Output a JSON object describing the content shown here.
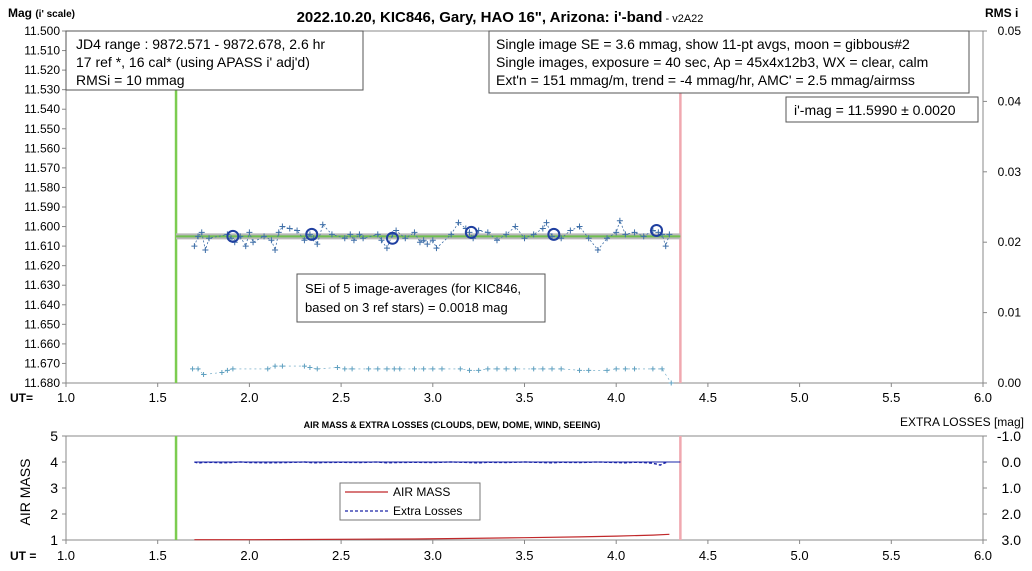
{
  "title_main": "2022.10.20, KIC846, Gary, HAO 16\", Arizona: i'-band",
  "title_version": " - v2A22",
  "top_chart": {
    "ylabel_main": "Mag",
    "ylabel_sub": "(i' scale)",
    "y2label": "RMS i",
    "xlabel": "UT=",
    "y_ticks": [
      "11.500",
      "11.510",
      "11.520",
      "11.530",
      "11.540",
      "11.550",
      "11.560",
      "11.570",
      "11.580",
      "11.590",
      "11.600",
      "11.610",
      "11.620",
      "11.630",
      "11.640",
      "11.650",
      "11.660",
      "11.670",
      "11.680"
    ],
    "y2_ticks": [
      "0.05",
      "0.04",
      "0.03",
      "0.02",
      "0.01",
      "0.00"
    ],
    "x_ticks": [
      "1.0",
      "1.5",
      "2.0",
      "2.5",
      "3.0",
      "3.5",
      "4.0",
      "4.5",
      "5.0",
      "5.5",
      "6.0"
    ],
    "info_left": [
      "JD4 range : 9872.571 - 9872.678, 2.6  hr",
      "17 ref *, 16 cal* (using APASS i' adj'd)",
      "RMSi = 10 mmag"
    ],
    "info_right": [
      "Single image SE = 3.6 mmag, show 11-pt avgs, moon = gibbous#2",
      "Single images, exposure = 40 sec, Ap = 45x4x12b3, WX = clear, calm",
      "Ext'n = 151 mmag/m, trend = -4 mmag/hr, AMC' = 2.5 mmag/airmss"
    ],
    "mag_box": "i'-mag = 11.5990 ± 0.0020",
    "sei_box": [
      "SEi of 5 image-averages (for KIC846,",
      "based on 3 ref stars) = 0.0018 mag"
    ]
  },
  "bottom_chart": {
    "title": "AIR MASS & EXTRA LOSSES (CLOUDS, DEW, DOME, WIND, SEEING)",
    "ylabel": "AIR MASS",
    "y2label": "EXTRA LOSSES [mag]",
    "xlabel": "UT =",
    "y_ticks": [
      "5",
      "4",
      "3",
      "2",
      "1"
    ],
    "y2_ticks": [
      "-1.0",
      "0.0",
      "1.0",
      "2.0",
      "3.0"
    ],
    "x_ticks": [
      "1.0",
      "1.5",
      "2.0",
      "2.5",
      "3.0",
      "3.5",
      "4.0",
      "4.5",
      "5.0",
      "5.5",
      "6.0"
    ],
    "legend": [
      "AIR MASS",
      "Extra Losses"
    ]
  },
  "chart_data": [
    {
      "type": "scatter",
      "xlim": [
        1.0,
        6.0
      ],
      "ylim": [
        11.68,
        11.5
      ],
      "y2lim": [
        0.0,
        0.05
      ],
      "colors": {
        "points": "#3f6fa8",
        "avg": "#1f3fa0",
        "fit": "#6fbf4f",
        "band": "#b8b8b8",
        "start": "#7ccc50",
        "end": "#f0a8b0",
        "rms": "#5fa0c0"
      },
      "start_ut": 1.6,
      "end_ut": 4.35,
      "fit_mag": 11.605,
      "series": [
        {
          "x": [
            1.7,
            1.72,
            1.74,
            1.76,
            1.78,
            1.88,
            1.9,
            1.92,
            1.95,
            1.98,
            2.0,
            2.02,
            2.08,
            2.12,
            2.14,
            2.16,
            2.18,
            2.22,
            2.26,
            2.3,
            2.33,
            2.35,
            2.37,
            2.4,
            2.45,
            2.52,
            2.55,
            2.57,
            2.6,
            2.62,
            2.7,
            2.72,
            2.75,
            2.78,
            2.8,
            2.85,
            2.9,
            2.93,
            2.95,
            2.97,
            3.0,
            3.02,
            3.1,
            3.14,
            3.18,
            3.2,
            3.22,
            3.25,
            3.3,
            3.35,
            3.4,
            3.45,
            3.5,
            3.55,
            3.6,
            3.62,
            3.65,
            3.7,
            3.75,
            3.8,
            3.85,
            3.9,
            3.95,
            4.0,
            4.02,
            4.05,
            4.1,
            4.15,
            4.2,
            4.23,
            4.25,
            4.27,
            4.29
          ],
          "y": [
            11.61,
            11.605,
            11.603,
            11.612,
            11.606,
            11.604,
            11.606,
            11.608,
            11.605,
            11.61,
            11.603,
            11.608,
            11.605,
            11.607,
            11.612,
            11.603,
            11.6,
            11.601,
            11.602,
            11.607,
            11.604,
            11.606,
            11.609,
            11.599,
            11.604,
            11.606,
            11.604,
            11.607,
            11.604,
            11.606,
            11.604,
            11.607,
            11.611,
            11.604,
            11.602,
            11.606,
            11.603,
            11.608,
            11.607,
            11.609,
            11.607,
            11.611,
            11.604,
            11.598,
            11.601,
            11.603,
            11.606,
            11.602,
            11.603,
            11.607,
            11.604,
            11.6,
            11.606,
            11.604,
            11.601,
            11.598,
            11.605,
            11.606,
            11.602,
            11.6,
            11.606,
            11.612,
            11.606,
            11.603,
            11.597,
            11.604,
            11.603,
            11.605,
            11.602,
            11.603,
            11.604,
            11.61,
            11.604
          ],
          "avg_x": [
            1.91,
            2.34,
            2.78,
            3.21,
            3.66,
            4.22
          ],
          "avg_y": [
            11.605,
            11.604,
            11.606,
            11.603,
            11.604,
            11.602
          ],
          "rms_x": [
            1.69,
            1.72,
            1.75,
            1.85,
            1.88,
            1.91,
            2.1,
            2.14,
            2.18,
            2.3,
            2.33,
            2.37,
            2.48,
            2.52,
            2.56,
            2.65,
            2.7,
            2.75,
            2.79,
            2.82,
            2.9,
            2.95,
            3.0,
            3.05,
            3.15,
            3.2,
            3.25,
            3.3,
            3.35,
            3.4,
            3.45,
            3.55,
            3.6,
            3.65,
            3.7,
            3.8,
            3.85,
            3.95,
            4.0,
            4.05,
            4.1,
            4.2,
            4.25,
            4.3
          ],
          "rms_y": [
            0.002,
            0.002,
            0.0012,
            0.0015,
            0.0018,
            0.002,
            0.002,
            0.0024,
            0.0024,
            0.0024,
            0.0022,
            0.002,
            0.0022,
            0.002,
            0.002,
            0.002,
            0.002,
            0.002,
            0.002,
            0.002,
            0.002,
            0.002,
            0.002,
            0.002,
            0.002,
            0.0018,
            0.0018,
            0.002,
            0.002,
            0.002,
            0.002,
            0.002,
            0.002,
            0.002,
            0.002,
            0.0018,
            0.0018,
            0.0018,
            0.002,
            0.002,
            0.002,
            0.002,
            0.002,
            0.0
          ]
        }
      ]
    },
    {
      "type": "line",
      "xlim": [
        1.0,
        6.0
      ],
      "ylim": [
        1,
        5
      ],
      "y2lim": [
        -1.0,
        3.0
      ],
      "colors": {
        "airmass": "#c0282a",
        "losses": "#1a24a8"
      },
      "series": [
        {
          "name": "AIR MASS",
          "x": [
            1.7,
            2.0,
            2.3,
            2.6,
            2.9,
            3.2,
            3.5,
            3.8,
            4.0,
            4.2,
            4.29
          ],
          "values": [
            1.01,
            1.01,
            1.02,
            1.03,
            1.04,
            1.06,
            1.09,
            1.12,
            1.15,
            1.19,
            1.22
          ]
        },
        {
          "name": "Extra Losses",
          "x": [
            1.7,
            1.72,
            1.75,
            1.8,
            1.85,
            1.9,
            1.95,
            2.0,
            2.1,
            2.2,
            2.3,
            2.35,
            2.4,
            2.5,
            2.6,
            2.7,
            2.75,
            2.8,
            2.9,
            3.0,
            3.1,
            3.2,
            3.25,
            3.3,
            3.4,
            3.5,
            3.6,
            3.65,
            3.7,
            3.8,
            3.9,
            4.0,
            4.05,
            4.1,
            4.15,
            4.2,
            4.22,
            4.24,
            4.26,
            4.28
          ],
          "values": [
            0.0,
            0.04,
            0.02,
            0.01,
            0.03,
            0.02,
            0.0,
            0.02,
            0.03,
            0.02,
            0.0,
            0.03,
            0.02,
            0.01,
            0.02,
            0.0,
            0.03,
            0.02,
            0.01,
            0.02,
            0.0,
            0.02,
            0.03,
            0.01,
            0.02,
            0.0,
            0.02,
            0.03,
            0.01,
            0.02,
            0.0,
            0.02,
            0.03,
            0.01,
            0.02,
            0.05,
            0.08,
            0.12,
            0.05,
            0.0
          ]
        }
      ]
    }
  ]
}
